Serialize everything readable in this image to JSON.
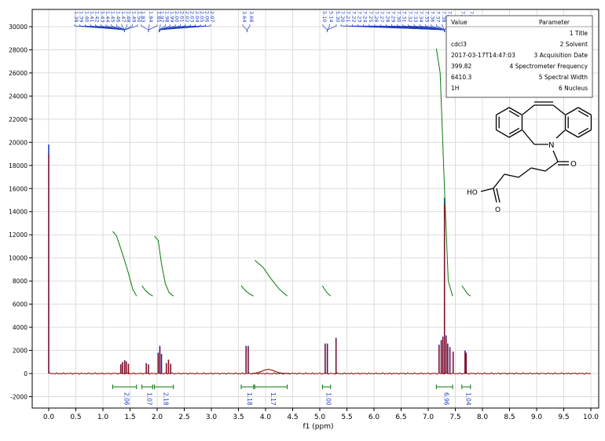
{
  "chart_data": {
    "type": "line",
    "title": "",
    "xlabel": "f1 (ppm)",
    "ylabel": "",
    "x_reversed": false,
    "xlim": [
      0.0,
      10.0
    ],
    "ylim": [
      -2800,
      30800
    ],
    "x_ticks": [
      "0.0",
      "0.5",
      "1.0",
      "1.5",
      "2.0",
      "2.5",
      "3.0",
      "3.5",
      "4.0",
      "4.5",
      "5.0",
      "5.5",
      "6.0",
      "6.5",
      "7.0",
      "7.5",
      "8.0",
      "8.5",
      "9.0",
      "9.5",
      "10.0"
    ],
    "y_ticks": [
      "-2000",
      "0",
      "2000",
      "4000",
      "6000",
      "8000",
      "10000",
      "12000",
      "14000",
      "16000",
      "18000",
      "20000",
      "22000",
      "24000",
      "26000",
      "28000",
      "30000"
    ],
    "grid": true,
    "peaks": [
      {
        "x": 0.0,
        "y": 19800
      },
      {
        "x": 1.33,
        "y": 800
      },
      {
        "x": 1.36,
        "y": 1000
      },
      {
        "x": 1.4,
        "y": 1150
      },
      {
        "x": 1.43,
        "y": 1050
      },
      {
        "x": 1.47,
        "y": 850
      },
      {
        "x": 1.8,
        "y": 900
      },
      {
        "x": 1.84,
        "y": 800
      },
      {
        "x": 2.02,
        "y": 1800
      },
      {
        "x": 2.05,
        "y": 2400
      },
      {
        "x": 2.08,
        "y": 1700
      },
      {
        "x": 2.17,
        "y": 900
      },
      {
        "x": 2.21,
        "y": 1200
      },
      {
        "x": 2.25,
        "y": 850
      },
      {
        "x": 3.64,
        "y": 2400
      },
      {
        "x": 3.68,
        "y": 2400
      },
      {
        "x": 5.1,
        "y": 2600
      },
      {
        "x": 5.14,
        "y": 2600
      },
      {
        "x": 5.3,
        "y": 3100
      },
      {
        "x": 7.2,
        "y": 2500
      },
      {
        "x": 7.24,
        "y": 2900
      },
      {
        "x": 7.27,
        "y": 3200
      },
      {
        "x": 7.3,
        "y": 15200
      },
      {
        "x": 7.33,
        "y": 3300
      },
      {
        "x": 7.36,
        "y": 2600
      },
      {
        "x": 7.4,
        "y": 2300
      },
      {
        "x": 7.46,
        "y": 1900
      },
      {
        "x": 7.68,
        "y": 2000
      },
      {
        "x": 7.7,
        "y": 1800
      }
    ],
    "peak_labels_top": [
      "1.38",
      "1.39",
      "1.40",
      "1.41",
      "1.42",
      "1.43",
      "1.44",
      "1.45",
      "1.46",
      "1.47",
      "1.48",
      "1.49",
      "1.50",
      "1.83",
      "1.84",
      "1.85",
      "1.97",
      "1.98",
      "1.99",
      "2.00",
      "2.01",
      "2.02",
      "2.03",
      "2.04",
      "2.05",
      "2.06",
      "2.07",
      "3.64",
      "3.68",
      "5.10",
      "5.14",
      "5.30",
      "7.20",
      "7.21",
      "7.22",
      "7.23",
      "7.24",
      "7.25",
      "7.26",
      "7.27",
      "7.28",
      "7.29",
      "7.30",
      "7.31",
      "7.32",
      "7.33",
      "7.34",
      "7.35",
      "7.36",
      "7.37",
      "7.38",
      "7.39",
      "7.68",
      "7.70"
    ],
    "integrals": [
      {
        "from": 1.18,
        "to": 1.62,
        "label": "2.06"
      },
      {
        "from": 1.72,
        "to": 1.92,
        "label": "1.07"
      },
      {
        "from": 1.95,
        "to": 2.3,
        "label": "2.18"
      },
      {
        "from": 3.55,
        "to": 3.78,
        "label": "1.18"
      },
      {
        "from": 3.8,
        "to": 4.4,
        "label": "1.17"
      },
      {
        "from": 5.05,
        "to": 5.2,
        "label": "1.00"
      },
      {
        "from": 7.15,
        "to": 7.45,
        "label": "6.96"
      },
      {
        "from": 7.62,
        "to": 7.78,
        "label": "1.04"
      }
    ],
    "integral_curves": [
      {
        "x": [
          1.18,
          1.25,
          1.35,
          1.45,
          1.55,
          1.62
        ],
        "y": [
          12300,
          11900,
          10500,
          9000,
          7300,
          6700
        ]
      },
      {
        "x": [
          1.72,
          1.78,
          1.85,
          1.92
        ],
        "y": [
          7600,
          7200,
          6900,
          6700
        ]
      },
      {
        "x": [
          1.95,
          2.02,
          2.08,
          2.15,
          2.22,
          2.3
        ],
        "y": [
          11900,
          11500,
          9500,
          7800,
          7000,
          6700
        ]
      },
      {
        "x": [
          3.55,
          3.62,
          3.7,
          3.78
        ],
        "y": [
          7600,
          7200,
          6900,
          6700
        ]
      },
      {
        "x": [
          3.8,
          3.95,
          4.1,
          4.25,
          4.4
        ],
        "y": [
          9800,
          9200,
          8200,
          7300,
          6700
        ]
      },
      {
        "x": [
          5.05,
          5.1,
          5.15,
          5.2
        ],
        "y": [
          7600,
          7200,
          6900,
          6700
        ]
      },
      {
        "x": [
          7.15,
          7.22,
          7.3,
          7.37,
          7.45
        ],
        "y": [
          28100,
          26000,
          16000,
          8000,
          6700
        ]
      },
      {
        "x": [
          7.62,
          7.68,
          7.72,
          7.78
        ],
        "y": [
          7600,
          7200,
          6900,
          6700
        ]
      }
    ]
  },
  "param_table": {
    "header": {
      "param": "Parameter",
      "value": "Value"
    },
    "rows": [
      {
        "param": "1 Title",
        "value": ""
      },
      {
        "param": "2 Solvent",
        "value": "cdcl3"
      },
      {
        "param": "3 Acquisition Date",
        "value": "2017-03-17T14:47:03"
      },
      {
        "param": "4 Spectrometer Frequency",
        "value": "399.82"
      },
      {
        "param": "5 Spectral Width",
        "value": "6410.3"
      },
      {
        "param": "6 Nucleus",
        "value": "1H"
      }
    ]
  },
  "structure": {
    "n_label": "N",
    "o_label": "O",
    "oh_label": "HO",
    "o2_label": "O"
  }
}
